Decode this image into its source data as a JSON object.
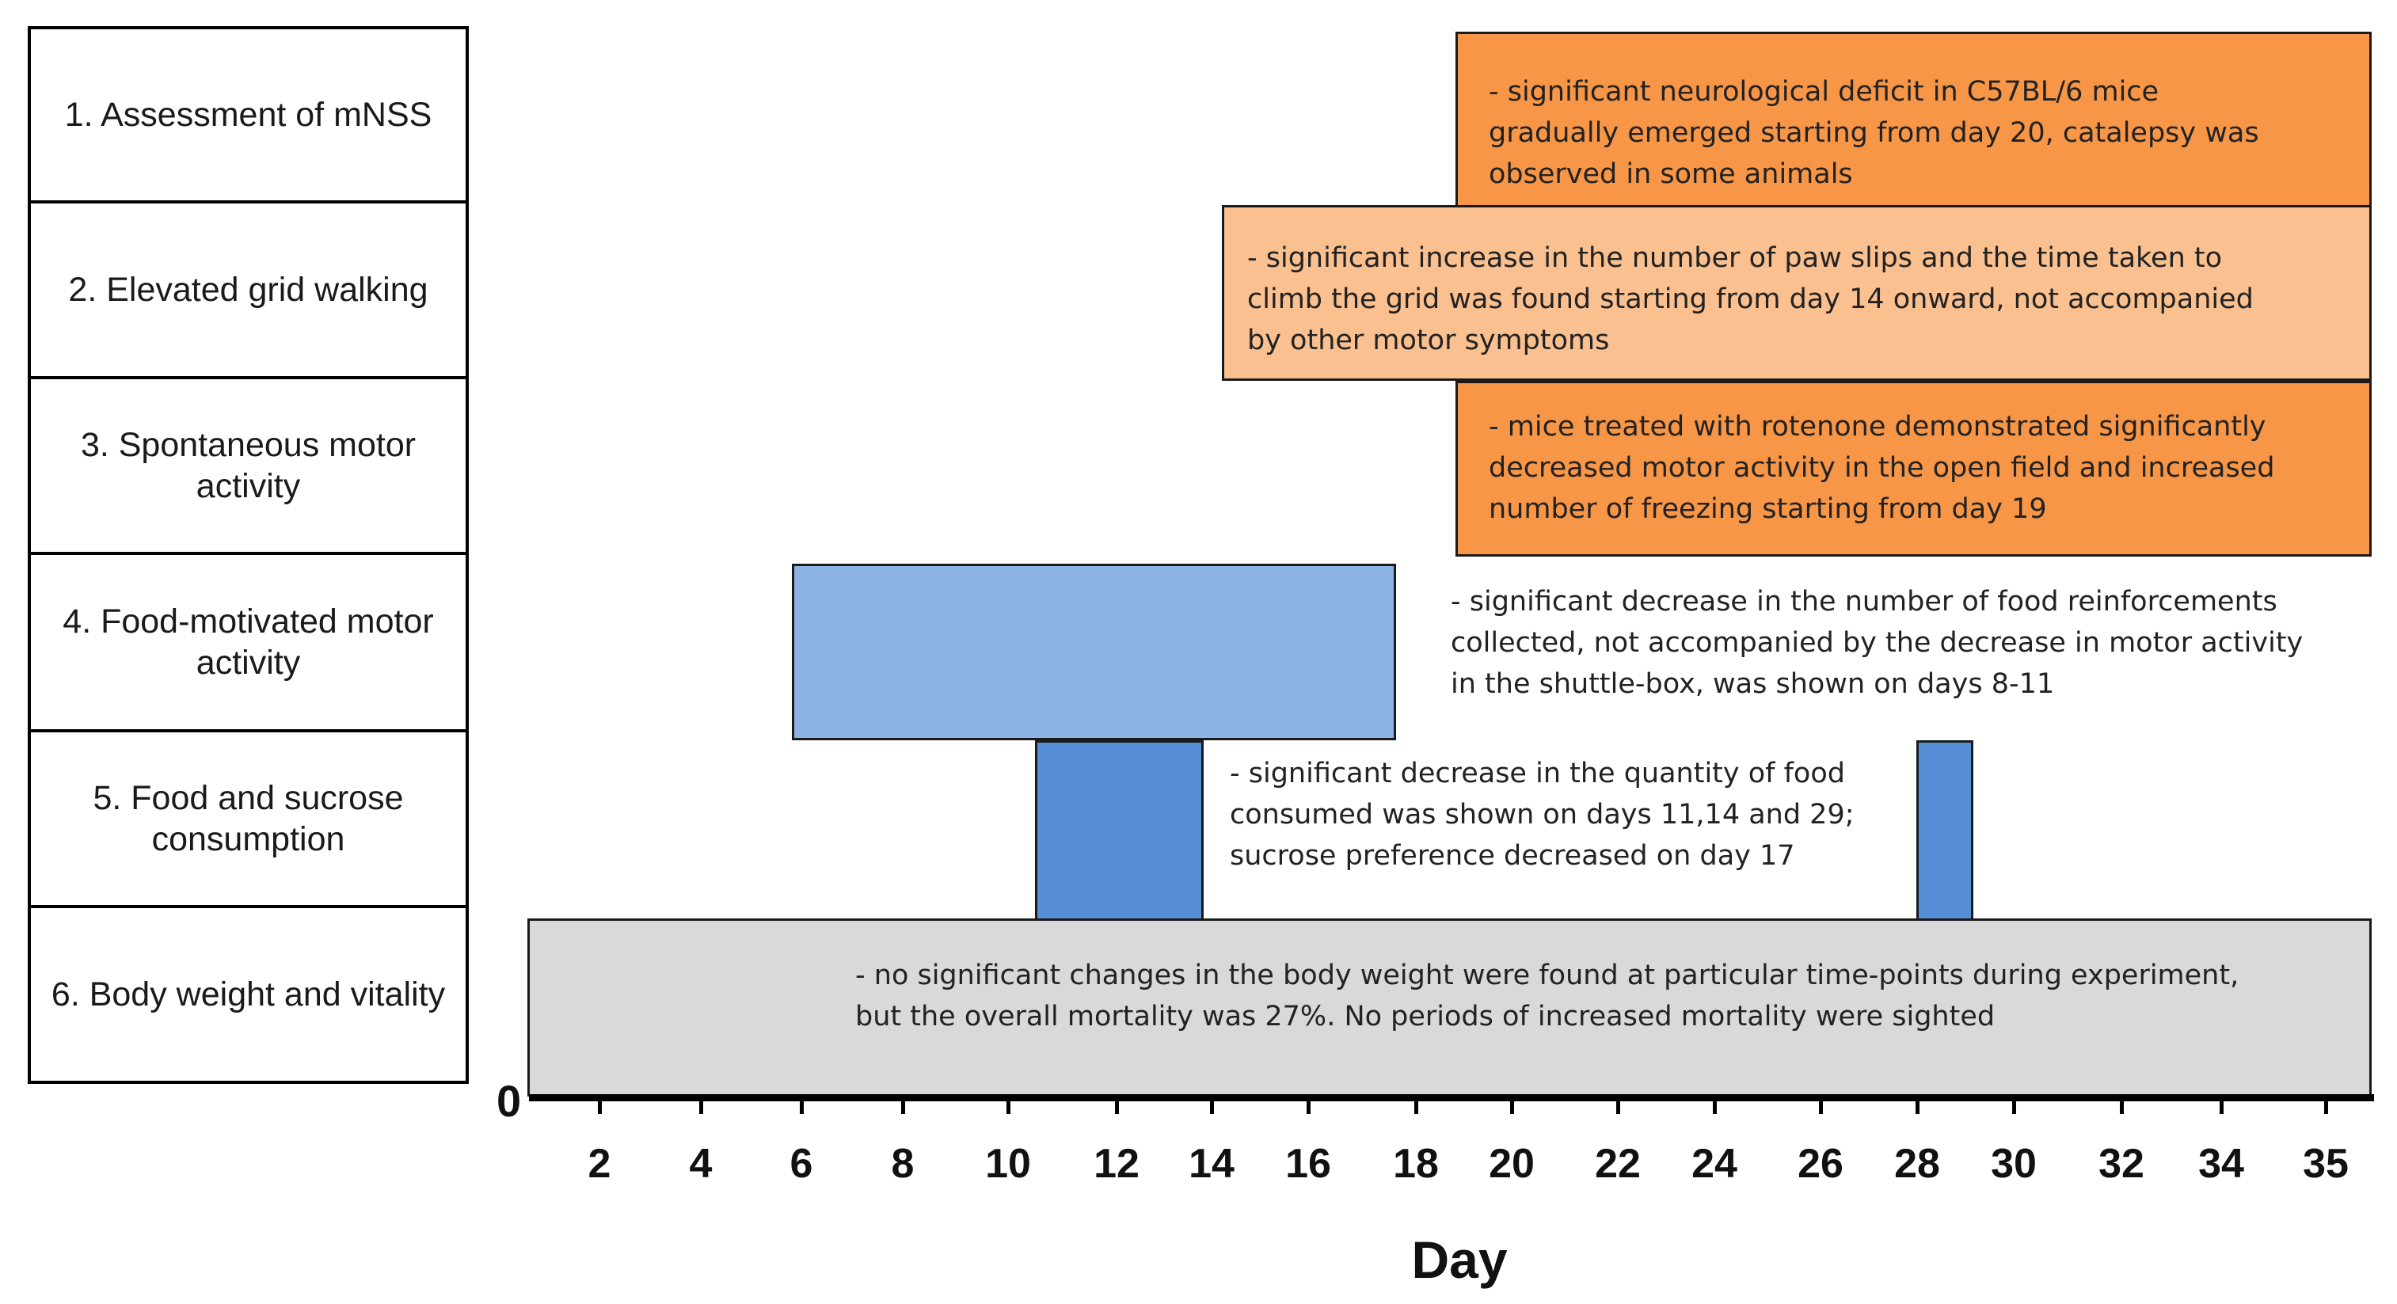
{
  "rows": [
    "1. Assessment of mNSS",
    "2. Elevated grid walking",
    "3. Spontaneous motor activity",
    "4. Food-motivated motor activity",
    "5. Food and sucrose consumption",
    "6. Body weight and vitality"
  ],
  "notes": {
    "mnss": "- significant neurological deficit in C57BL/6 mice\ngradually emerged starting from day 20, catalepsy was\nobserved in some animals",
    "grid": "- significant increase in the number of paw slips and the time taken to\nclimb the grid was found  starting from day 14 onward, not accompanied\nby other  motor symptoms",
    "spontaneous": "- mice treated with rotenone  demonstrated significantly\ndecreased motor activity in the open field and increased\nnumber of freezing starting from day 19",
    "food_motivated": "- significant decrease in the number of food reinforcements\ncollected, not accompanied by the decrease in motor activity\nin the shuttle-box,  was shown  on days 8-11",
    "consumption": "- significant decrease in the quantity of food\nconsumed was shown  on days 11,14 and 29;\nsucrose preference decreased on day 17",
    "body_weight": "- no significant changes in the body  weight were found at particular time-points during experiment,\nbut the overall mortality was 27%. No periods of increased mortality were sighted"
  },
  "axis": {
    "zero_label": "0",
    "title": "Day",
    "tick_labels": [
      "2",
      "4",
      "6",
      "8",
      "10",
      "12",
      "14",
      "16",
      "18",
      "20",
      "22",
      "24",
      "26",
      "28",
      "30",
      "32",
      "34",
      "35"
    ]
  },
  "colors": {
    "orange_dark": "#F79646",
    "orange_light": "#FAC090",
    "blue_light": "#8EB4E3",
    "blue": "#558ED5",
    "grey": "#D9D9D9"
  }
}
